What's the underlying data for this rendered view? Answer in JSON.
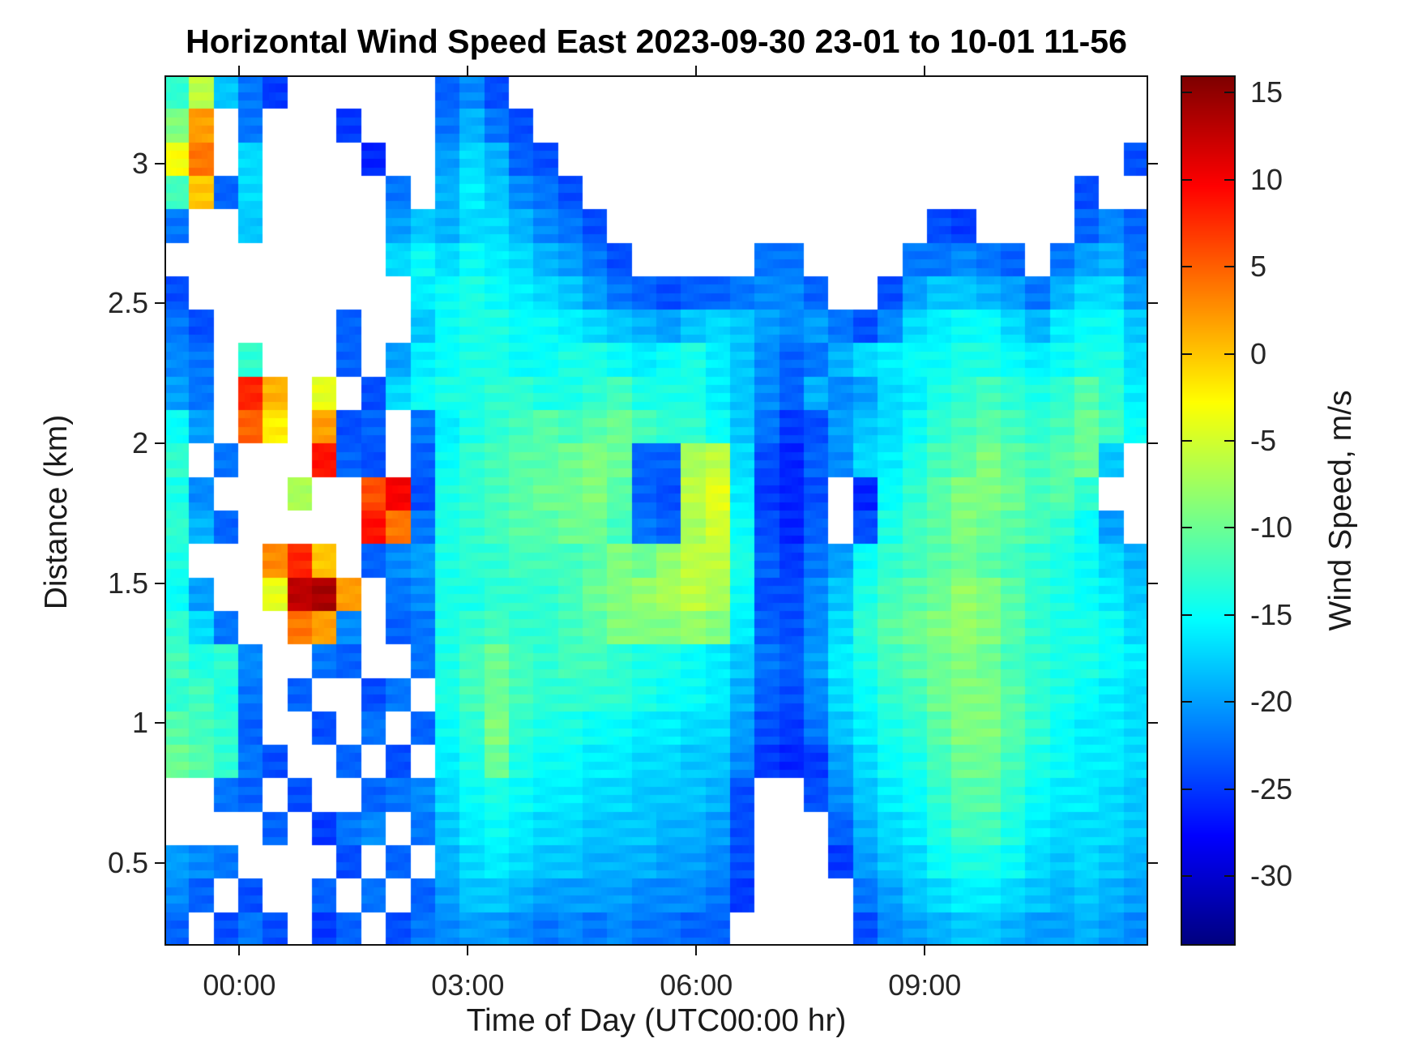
{
  "chart_data": {
    "type": "heatmap",
    "title": "Horizontal Wind Speed East 2023-09-30 23-01 to 10-01 11-56",
    "xlabel": "Time of Day (UTC00:00 hr)",
    "ylabel": "Distance (km)",
    "units": "m/s",
    "x_start": "23:01",
    "x_end": "11:56",
    "total_hours": 12.917,
    "x_ticks": [
      "00:00",
      "03:00",
      "06:00",
      "09:00"
    ],
    "x_tick_hours_from_start": [
      0.983,
      3.983,
      6.983,
      9.983
    ],
    "y_min_km": 0.205,
    "y_max_km": 3.315,
    "y_ticks": [
      3,
      2.5,
      2,
      1.5,
      1,
      0.5
    ],
    "grid": "off",
    "legend": "colorbar-right",
    "no_data_color": "#ffffff",
    "n_cols": 40,
    "n_rows": 26,
    "row_top_km": 3.315,
    "row_bottom_km": 0.205,
    "values": [
      [
        -13,
        -6,
        -18,
        -22,
        -25,
        null,
        null,
        null,
        null,
        null,
        null,
        -23,
        -21,
        -24,
        null,
        null,
        null,
        null,
        null,
        null,
        null,
        null,
        null,
        null,
        null,
        null,
        null,
        null,
        null,
        null,
        null,
        null,
        null,
        null,
        null,
        null,
        null,
        null,
        null,
        null
      ],
      [
        -9,
        2,
        null,
        -22,
        null,
        null,
        null,
        -25,
        null,
        null,
        null,
        -22,
        -19,
        -22,
        -24,
        null,
        null,
        null,
        null,
        null,
        null,
        null,
        null,
        null,
        null,
        null,
        null,
        null,
        null,
        null,
        null,
        null,
        null,
        null,
        null,
        null,
        null,
        null,
        null,
        null
      ],
      [
        -3,
        4,
        null,
        -17,
        null,
        null,
        null,
        null,
        -26,
        null,
        null,
        -20,
        -17,
        -19,
        -23,
        -24,
        null,
        null,
        null,
        null,
        null,
        null,
        null,
        null,
        null,
        null,
        null,
        null,
        null,
        null,
        null,
        null,
        null,
        null,
        null,
        null,
        null,
        null,
        null,
        -24
      ],
      [
        -12,
        0,
        -23,
        -17,
        null,
        null,
        null,
        null,
        null,
        -22,
        null,
        -19,
        -16,
        -18,
        -21,
        -22,
        -24,
        null,
        null,
        null,
        null,
        null,
        null,
        null,
        null,
        null,
        null,
        null,
        null,
        null,
        null,
        null,
        null,
        null,
        null,
        null,
        null,
        -24,
        null,
        null
      ],
      [
        -22,
        null,
        null,
        -18,
        null,
        null,
        null,
        null,
        null,
        -20,
        -18,
        -19,
        -17,
        -17,
        -19,
        -21,
        -22,
        -24,
        null,
        null,
        null,
        null,
        null,
        null,
        null,
        null,
        null,
        null,
        null,
        null,
        null,
        -24,
        -25,
        null,
        null,
        null,
        null,
        -23,
        -21,
        -23
      ],
      [
        null,
        null,
        null,
        null,
        null,
        null,
        null,
        null,
        null,
        -17,
        -15,
        -17,
        -15,
        -16,
        -17,
        -19,
        -20,
        -22,
        -24,
        null,
        null,
        null,
        null,
        null,
        -22,
        -22,
        null,
        null,
        null,
        null,
        -22,
        -22,
        -21,
        -22,
        -23,
        null,
        -22,
        -20,
        -19,
        -22
      ],
      [
        -24,
        null,
        null,
        null,
        null,
        null,
        null,
        null,
        null,
        null,
        -16,
        -15,
        -14,
        -15,
        -16,
        -17,
        -18,
        -20,
        -22,
        -23,
        -24,
        -23,
        -23,
        -22,
        -21,
        -21,
        -23,
        null,
        null,
        -24,
        -20,
        -18,
        -18,
        -19,
        -20,
        -22,
        -19,
        -17,
        -17,
        -20
      ],
      [
        -22,
        -24,
        null,
        null,
        null,
        null,
        null,
        -23,
        null,
        null,
        -18,
        -15,
        -14,
        -14,
        -15,
        -15,
        -16,
        -17,
        -18,
        -19,
        -20,
        -18,
        -17,
        -18,
        -20,
        -21,
        -20,
        -22,
        -24,
        -21,
        -17,
        -16,
        -15,
        -15,
        -17,
        -19,
        -16,
        -15,
        -15,
        -18
      ],
      [
        -21,
        -22,
        null,
        -13,
        null,
        null,
        null,
        -23,
        null,
        -20,
        -16,
        -15,
        -14,
        -14,
        -15,
        -15,
        -14,
        -14,
        -15,
        -16,
        -15,
        -14,
        -16,
        -18,
        -21,
        -23,
        -22,
        -19,
        -17,
        -16,
        -15,
        -15,
        -14,
        -14,
        -15,
        -16,
        -15,
        -14,
        -14,
        -17
      ],
      [
        -20,
        -22,
        null,
        8,
        1,
        null,
        -4,
        null,
        -24,
        -17,
        -15,
        -14,
        -14,
        -13,
        -13,
        -14,
        -14,
        -13,
        -12,
        -14,
        -14,
        -14,
        -16,
        -18,
        -21,
        -23,
        -19,
        -21,
        -20,
        -17,
        -16,
        -14,
        -13,
        -12,
        -13,
        -14,
        -13,
        -11,
        -13,
        -16
      ],
      [
        -15,
        -20,
        null,
        5,
        -2,
        null,
        2,
        -24,
        -23,
        null,
        -22,
        -16,
        -14,
        -13,
        -12,
        -11,
        -12,
        -11,
        -10,
        -12,
        -13,
        -13,
        -15,
        -18,
        -22,
        -25,
        -24,
        -20,
        -18,
        -17,
        -15,
        -13,
        -12,
        -11,
        -12,
        -13,
        -12,
        -10,
        -12,
        -15
      ],
      [
        -13,
        null,
        -22,
        null,
        null,
        null,
        9,
        -23,
        -24,
        null,
        -23,
        -15,
        -13,
        -12,
        -11,
        -11,
        -10,
        -9,
        -10,
        -23,
        -23,
        -7,
        -6,
        -17,
        -24,
        -26,
        -23,
        -21,
        -17,
        -16,
        -14,
        -12,
        -11,
        -9,
        -11,
        -12,
        -11,
        -10,
        -18,
        null
      ],
      [
        -14,
        -21,
        null,
        null,
        null,
        -7,
        null,
        null,
        6,
        10,
        -24,
        -14,
        -13,
        -12,
        -11,
        -10,
        -10,
        -9,
        -11,
        -23,
        -24,
        -6,
        -4,
        -16,
        -25,
        -26,
        -24,
        null,
        -26,
        -15,
        -13,
        -11,
        -9,
        -9,
        -10,
        -12,
        -11,
        -13,
        null,
        null
      ],
      [
        -13,
        -19,
        -23,
        null,
        null,
        null,
        null,
        null,
        9,
        4,
        -22,
        -14,
        -13,
        -12,
        -11,
        -11,
        -10,
        -10,
        -12,
        -22,
        -23,
        -7,
        -5,
        -15,
        -24,
        -26,
        -23,
        null,
        -24,
        -14,
        -12,
        -11,
        -9,
        -10,
        -11,
        -12,
        -13,
        -15,
        -20,
        null
      ],
      [
        -14,
        null,
        null,
        null,
        3,
        8,
        0,
        null,
        -23,
        -21,
        -20,
        -14,
        -13,
        -13,
        -12,
        -12,
        -12,
        -11,
        -9,
        -10,
        -8,
        -6,
        -6,
        -14,
        -23,
        -25,
        -22,
        -20,
        -15,
        -13,
        -12,
        -11,
        -10,
        -11,
        -12,
        -13,
        -14,
        -15,
        -17,
        -19
      ],
      [
        -15,
        -20,
        null,
        null,
        -4,
        13,
        14,
        2,
        null,
        -22,
        -21,
        -14,
        -14,
        -13,
        -13,
        -13,
        -12,
        -10,
        -9,
        -8,
        -7,
        -6,
        -7,
        -15,
        -24,
        -24,
        -21,
        -18,
        -14,
        -12,
        -11,
        -10,
        -8,
        -9,
        -11,
        -13,
        -14,
        -15,
        -16,
        -18
      ],
      [
        -13,
        -17,
        -22,
        null,
        null,
        4,
        2,
        -21,
        null,
        -23,
        -22,
        -14,
        -13,
        -12,
        -13,
        -13,
        -12,
        -11,
        -9,
        -9,
        -9,
        -8,
        -9,
        -16,
        -23,
        -24,
        -21,
        -17,
        -13,
        -11,
        -10,
        -9,
        -8,
        -9,
        -11,
        -13,
        -14,
        -14,
        -15,
        -17
      ],
      [
        -12,
        -14,
        -13,
        -21,
        null,
        null,
        -22,
        -23,
        null,
        null,
        -22,
        -14,
        -12,
        -10,
        -12,
        -13,
        -12,
        -12,
        -13,
        -14,
        -14,
        -15,
        -16,
        -18,
        -22,
        -23,
        -20,
        -16,
        -14,
        -12,
        -11,
        -10,
        -9,
        -10,
        -12,
        -13,
        -14,
        -14,
        -15,
        -16
      ],
      [
        -13,
        -12,
        -14,
        -22,
        null,
        -23,
        null,
        null,
        -24,
        -22,
        null,
        -14,
        -12,
        -10,
        -12,
        -13,
        -13,
        -13,
        -13,
        -14,
        -15,
        -15,
        -16,
        -19,
        -23,
        -24,
        -21,
        -17,
        -15,
        -13,
        -12,
        -10,
        -9,
        -9,
        -11,
        -13,
        -14,
        -15,
        -16,
        -17
      ],
      [
        -11,
        -12,
        -13,
        -23,
        null,
        null,
        -24,
        null,
        -22,
        null,
        -23,
        -15,
        -13,
        -9,
        -13,
        -14,
        -14,
        -15,
        -15,
        -16,
        -16,
        -17,
        -17,
        -20,
        -24,
        -25,
        -22,
        -18,
        -16,
        -14,
        -13,
        -11,
        -9,
        -9,
        -11,
        -13,
        -15,
        -16,
        -16,
        -17
      ],
      [
        -10,
        -11,
        -13,
        -22,
        -24,
        null,
        null,
        -23,
        null,
        -24,
        null,
        -16,
        -14,
        -10,
        -14,
        -15,
        -15,
        -16,
        -16,
        -17,
        -17,
        -18,
        -18,
        -21,
        -25,
        -26,
        -25,
        -20,
        -17,
        -15,
        -14,
        -12,
        -10,
        -10,
        -12,
        -14,
        -15,
        -16,
        -16,
        -17
      ],
      [
        null,
        null,
        -22,
        -23,
        null,
        -24,
        null,
        null,
        -23,
        -22,
        -21,
        -17,
        -15,
        -14,
        -15,
        -16,
        -16,
        -17,
        -17,
        -18,
        -18,
        -18,
        -19,
        -24,
        null,
        null,
        -24,
        -21,
        -18,
        -16,
        -15,
        -13,
        -11,
        -11,
        -13,
        -15,
        -16,
        -16,
        -17,
        -18
      ],
      [
        null,
        null,
        null,
        null,
        -23,
        null,
        -25,
        -22,
        -21,
        null,
        -22,
        -18,
        -16,
        -15,
        -16,
        -17,
        -17,
        -18,
        -18,
        -18,
        -19,
        -19,
        -20,
        -24,
        null,
        null,
        null,
        -23,
        -19,
        -17,
        -16,
        -14,
        -12,
        -12,
        -14,
        -16,
        -17,
        -17,
        -17,
        -18
      ],
      [
        -20,
        -21,
        -22,
        null,
        null,
        null,
        null,
        -24,
        null,
        -23,
        null,
        -19,
        -17,
        -16,
        -17,
        -18,
        -18,
        -19,
        -19,
        -19,
        -20,
        -20,
        -21,
        -24,
        null,
        null,
        null,
        -25,
        -20,
        -18,
        -17,
        -15,
        -14,
        -14,
        -15,
        -17,
        -18,
        -17,
        -18,
        -19
      ],
      [
        -21,
        -23,
        null,
        -24,
        null,
        null,
        -23,
        null,
        -22,
        null,
        -23,
        -20,
        -18,
        -18,
        -19,
        -20,
        -20,
        -20,
        -20,
        -21,
        -21,
        -21,
        -22,
        -25,
        null,
        null,
        null,
        null,
        -22,
        -20,
        -18,
        -17,
        -16,
        -16,
        -17,
        -18,
        -19,
        -18,
        -19,
        -20
      ],
      [
        -23,
        null,
        -24,
        -22,
        -24,
        null,
        -25,
        -23,
        null,
        -24,
        -22,
        -21,
        -20,
        -20,
        -21,
        -22,
        -21,
        -22,
        -21,
        -22,
        -22,
        -23,
        -23,
        null,
        null,
        null,
        null,
        null,
        -24,
        -21,
        -20,
        -19,
        -18,
        -18,
        -19,
        -20,
        -20,
        -19,
        -20,
        -21
      ]
    ]
  },
  "colorbar": {
    "label": "Wind Speed, m/s",
    "ticks": [
      15,
      10,
      5,
      0,
      -5,
      -10,
      -15,
      -20,
      -25,
      -30
    ],
    "vmin": -34,
    "vmax": 16,
    "colormap": "jet"
  }
}
